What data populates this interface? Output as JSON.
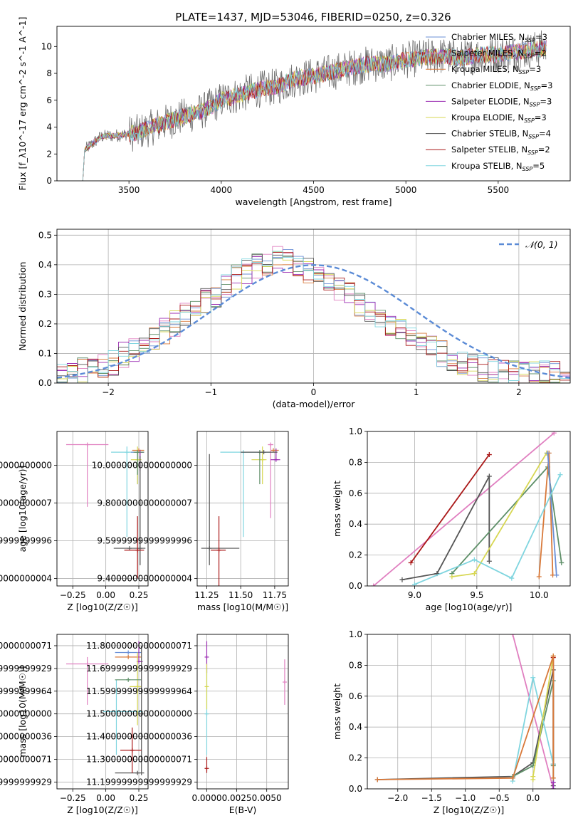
{
  "figure": {
    "title": "PLATE=1437, MJD=53046, FIBERID=0250, z=0.326",
    "colors": [
      "#6a8fd6",
      "#e07fc0",
      "#d8793a",
      "#5e8f68",
      "#9c2fb3",
      "#d7d752",
      "#555555",
      "#aa1818",
      "#7fd5df"
    ]
  },
  "chart_data": [
    {
      "id": "spectrum",
      "type": "line",
      "xlabel": "wavelength [Angstrom, rest frame]",
      "ylabel": "Flux [f_λ10^-17 erg cm^-2 s^-1 A^-1]",
      "xlim": [
        3110,
        5890
      ],
      "ylim": [
        0,
        11.5
      ],
      "xticks": [
        3500,
        4000,
        4500,
        5000,
        5500
      ],
      "yticks": [
        0,
        2,
        4,
        6,
        8,
        10
      ],
      "grid": false,
      "legend": "top-right",
      "series": [
        {
          "name": "Chabrier MILES, N_SSP=3",
          "color": "#6a8fd6"
        },
        {
          "name": "Salpeter MILES, N_SSP=2",
          "color": "#e07fc0"
        },
        {
          "name": "Kroupa MILES, N_SSP=3",
          "color": "#d8793a"
        },
        {
          "name": "Chabrier ELODIE, N_SSP=3",
          "color": "#5e8f68"
        },
        {
          "name": "Salpeter ELODIE, N_SSP=3",
          "color": "#9c2fb3"
        },
        {
          "name": "Kroupa ELODIE, N_SSP=3",
          "color": "#d7d752"
        },
        {
          "name": "Chabrier STELIB, N_SSP=4",
          "color": "#555555"
        },
        {
          "name": "Salpeter STELIB, N_SSP=2",
          "color": "#aa1818"
        },
        {
          "name": "Kroupa STELIB, N_SSP=5",
          "color": "#7fd5df"
        }
      ],
      "continuum": [
        [
          3250,
          0
        ],
        [
          3260,
          2.3
        ],
        [
          3350,
          3.3
        ],
        [
          3450,
          3.4
        ],
        [
          3550,
          3.6
        ],
        [
          3650,
          4.1
        ],
        [
          3750,
          4.6
        ],
        [
          3850,
          5.0
        ],
        [
          3900,
          5.2
        ],
        [
          3950,
          5.6
        ],
        [
          4000,
          6.0
        ],
        [
          4100,
          6.4
        ],
        [
          4200,
          6.8
        ],
        [
          4300,
          7.0
        ],
        [
          4400,
          7.6
        ],
        [
          4500,
          7.8
        ],
        [
          4600,
          8.1
        ],
        [
          4700,
          8.4
        ],
        [
          4800,
          8.7
        ],
        [
          4900,
          8.7
        ],
        [
          5000,
          9.0
        ],
        [
          5100,
          9.2
        ],
        [
          5200,
          9.3
        ],
        [
          5300,
          9.1
        ],
        [
          5400,
          9.4
        ],
        [
          5500,
          9.4
        ],
        [
          5600,
          9.6
        ],
        [
          5700,
          9.8
        ],
        [
          5760,
          9.9
        ]
      ]
    },
    {
      "id": "residual-histogram",
      "type": "bar",
      "xlabel": "(data-model)/error",
      "ylabel": "Normed distribution",
      "xlim": [
        -2.5,
        2.5
      ],
      "ylim": [
        0,
        0.52
      ],
      "xticks": [
        -2,
        -1,
        0,
        1,
        2
      ],
      "yticks": [
        0.0,
        0.1,
        0.2,
        0.3,
        0.4,
        0.5
      ],
      "grid": true,
      "legend": "top-right",
      "reference": {
        "name": "𝒩(0, 1)",
        "mean": 0,
        "sigma": 1,
        "color": "#5b8bd6"
      },
      "bin_width": 0.1,
      "profile": [
        0.025,
        0.03,
        0.04,
        0.045,
        0.06,
        0.07,
        0.095,
        0.11,
        0.13,
        0.155,
        0.175,
        0.2,
        0.225,
        0.25,
        0.275,
        0.3,
        0.33,
        0.36,
        0.38,
        0.395,
        0.41,
        0.42,
        0.41,
        0.39,
        0.38,
        0.36,
        0.34,
        0.32,
        0.3,
        0.27,
        0.25,
        0.22,
        0.2,
        0.18,
        0.16,
        0.14,
        0.12,
        0.1,
        0.085,
        0.07,
        0.06,
        0.05,
        0.045,
        0.035,
        0.03,
        0.03,
        0.03,
        0.035,
        0.035,
        0.04
      ]
    },
    {
      "id": "age-vs-metallicity",
      "type": "scatter",
      "xlabel": "Z [log10(Z/Z☉)]",
      "ylabel": "age [log10(age/yr)]",
      "xlim": [
        -0.37,
        0.32
      ],
      "ylim": [
        9.36,
        10.18
      ],
      "xticks": [
        -0.25,
        0.0,
        0.25
      ],
      "yticks": [
        9.4,
        9.6,
        9.8,
        10.0
      ],
      "grid": true,
      "points": [
        {
          "x": -0.14,
          "y": 10.11,
          "xerr": [
            0.16,
            0.16
          ],
          "yerr": [
            0.33,
            0.0
          ],
          "color": "#e07fc0"
        },
        {
          "x": 0.16,
          "y": 10.07,
          "xerr": [
            0.12,
            0.12
          ],
          "yerr": [
            0.45,
            0.03
          ],
          "color": "#7fd5df"
        },
        {
          "x": 0.24,
          "y": 10.07,
          "xerr": [
            0.05,
            0.05
          ],
          "yerr": [
            0.17,
            0.0
          ],
          "color": "#6a8fd6"
        },
        {
          "x": 0.25,
          "y": 10.08,
          "xerr": [
            0.05,
            0.04
          ],
          "yerr": [
            0.0,
            0.0
          ],
          "color": "#d8793a"
        },
        {
          "x": 0.26,
          "y": 10.07,
          "xerr": [
            0.0,
            0.03
          ],
          "yerr": [
            0.1,
            0.0
          ],
          "color": "#9c2fb3"
        },
        {
          "x": 0.24,
          "y": 10.03,
          "xerr": [
            0.05,
            0.03
          ],
          "yerr": [
            0.13,
            0.07
          ],
          "color": "#d7d752"
        },
        {
          "x": 0.24,
          "y": 10.07,
          "xerr": [
            0.03,
            0.05
          ],
          "yerr": [
            0.12,
            0.0
          ],
          "color": "#5e8f68"
        },
        {
          "x": 0.18,
          "y": 9.56,
          "xerr": [
            0.12,
            0.12
          ],
          "yerr": [
            0.0,
            0.0
          ],
          "color": "#555555"
        },
        {
          "x": 0.26,
          "y": 9.56,
          "xerr": [
            0.0,
            0.0
          ],
          "yerr": [
            0.09,
            0.49
          ],
          "color": "#555555"
        },
        {
          "x": 0.24,
          "y": 9.55,
          "xerr": [
            0.1,
            0.05
          ],
          "yerr": [
            0.15,
            0.18
          ],
          "color": "#aa1818"
        }
      ]
    },
    {
      "id": "age-vs-mass",
      "type": "scatter",
      "xlabel": "mass [log10(M/M☉)]",
      "ylabel": "",
      "xlim": [
        11.18,
        11.85
      ],
      "ylim": [
        9.36,
        10.18
      ],
      "xticks": [
        11.25,
        11.5,
        11.75
      ],
      "yticks": [
        9.4,
        9.6,
        9.8,
        10.0
      ],
      "grid": true,
      "points": [
        {
          "x": 11.52,
          "y": 10.07,
          "xerr": [
            0.17,
            0.2
          ],
          "yerr": [
            0.45,
            0.0
          ],
          "color": "#7fd5df"
        },
        {
          "x": 11.72,
          "y": 10.11,
          "xerr": [
            0.02,
            0.02
          ],
          "yerr": [
            0.39,
            0.0
          ],
          "color": "#e07fc0"
        },
        {
          "x": 11.66,
          "y": 10.03,
          "xerr": [
            0.08,
            0.03
          ],
          "yerr": [
            0.13,
            0.07
          ],
          "color": "#d7d752"
        },
        {
          "x": 11.74,
          "y": 10.08,
          "xerr": [
            0.0,
            0.04
          ],
          "yerr": [
            0.0,
            0.0
          ],
          "color": "#d8793a"
        },
        {
          "x": 11.76,
          "y": 10.03,
          "xerr": [
            0.04,
            0.03
          ],
          "yerr": [
            0.0,
            0.06
          ],
          "color": "#9c2fb3"
        },
        {
          "x": 11.64,
          "y": 10.07,
          "xerr": [
            0.0,
            0.01
          ],
          "yerr": [
            0.17,
            0.0
          ],
          "color": "#5e8f68"
        },
        {
          "x": 11.67,
          "y": 10.07,
          "xerr": [
            0.17,
            0.1
          ],
          "yerr": [
            0.0,
            0.0
          ],
          "color": "#555555"
        },
        {
          "x": 11.27,
          "y": 9.56,
          "xerr": [
            0.06,
            0.22
          ],
          "yerr": [
            0.09,
            0.5
          ],
          "color": "#555555"
        },
        {
          "x": 11.34,
          "y": 9.55,
          "xerr": [
            0.06,
            0.05
          ],
          "yerr": [
            0.2,
            0.18
          ],
          "color": "#aa1818"
        }
      ]
    },
    {
      "id": "mass-weight-vs-age",
      "type": "line",
      "xlabel": "age [log10(age/yr)]",
      "ylabel": "mass weight",
      "xlim": [
        8.62,
        10.25
      ],
      "ylim": [
        0.0,
        1.0
      ],
      "xticks": [
        9.0,
        9.5,
        10.0
      ],
      "yticks": [
        0.0,
        0.2,
        0.4,
        0.6,
        0.8,
        1.0
      ],
      "grid": true,
      "series": [
        {
          "color": "#e07fc0",
          "x": [
            8.67,
            10.12
          ],
          "y": [
            0.0,
            0.99
          ]
        },
        {
          "color": "#aa1818",
          "x": [
            8.97,
            9.6
          ],
          "y": [
            0.15,
            0.85
          ]
        },
        {
          "color": "#555555",
          "x": [
            8.9,
            9.18,
            9.6,
            9.6
          ],
          "y": [
            0.04,
            0.08,
            0.71,
            0.16
          ]
        },
        {
          "color": "#5e8f68",
          "x": [
            9.3,
            10.07,
            10.18
          ],
          "y": [
            0.08,
            0.77,
            0.15
          ]
        },
        {
          "color": "#d7d752",
          "x": [
            9.3,
            9.48,
            10.06
          ],
          "y": [
            0.06,
            0.08,
            0.86
          ]
        },
        {
          "color": "#d8793a",
          "x": [
            10.0,
            10.08,
            10.11
          ],
          "y": [
            0.06,
            0.86,
            0.07
          ]
        },
        {
          "color": "#6a8fd6",
          "x": [
            10.07,
            10.14
          ],
          "y": [
            0.86,
            0.07
          ]
        },
        {
          "color": "#7fd5df",
          "x": [
            9.0,
            9.48,
            9.78,
            10.17
          ],
          "y": [
            0.01,
            0.17,
            0.05,
            0.72
          ]
        }
      ]
    },
    {
      "id": "mass-vs-metallicity",
      "type": "scatter",
      "xlabel": "Z [log10(Z/Z☉)]",
      "ylabel": "mass [log10(M/M☉)]",
      "xlim": [
        -0.37,
        0.32
      ],
      "ylim": [
        11.17,
        11.85
      ],
      "xticks": [
        -0.25,
        0.0,
        0.25
      ],
      "yticks": [
        11.2,
        11.3,
        11.4,
        11.5,
        11.6,
        11.7,
        11.8
      ],
      "grid": true,
      "points": [
        {
          "x": -0.14,
          "y": 11.72,
          "xerr": [
            0.16,
            0.16
          ],
          "yerr": [
            0.18,
            0.03
          ],
          "color": "#e07fc0"
        },
        {
          "x": 0.08,
          "y": 11.51,
          "xerr": [
            0.1,
            0.2
          ],
          "yerr": [
            0.19,
            0.14
          ],
          "color": "#7fd5df"
        },
        {
          "x": 0.17,
          "y": 11.77,
          "xerr": [
            0.1,
            0.1
          ],
          "yerr": [
            0.0,
            0.0
          ],
          "color": "#6a8fd6"
        },
        {
          "x": 0.17,
          "y": 11.75,
          "xerr": [
            0.1,
            0.1
          ],
          "yerr": [
            0.0,
            0.0
          ],
          "color": "#d8793a"
        },
        {
          "x": 0.25,
          "y": 11.73,
          "xerr": [
            0.0,
            0.03
          ],
          "yerr": [
            0.0,
            0.09
          ],
          "color": "#9c2fb3"
        },
        {
          "x": 0.24,
          "y": 11.62,
          "xerr": [
            0.06,
            0.03
          ],
          "yerr": [
            0.17,
            0.15
          ],
          "color": "#d7d752"
        },
        {
          "x": 0.17,
          "y": 11.65,
          "xerr": [
            0.1,
            0.1
          ],
          "yerr": [
            0.0,
            0.0
          ],
          "color": "#5e8f68"
        },
        {
          "x": 0.24,
          "y": 11.24,
          "xerr": [
            0.17,
            0.05
          ],
          "yerr": [
            0.0,
            0.0
          ],
          "color": "#555555"
        },
        {
          "x": 0.27,
          "y": 11.5,
          "xerr": [
            0.0,
            0.0
          ],
          "yerr": [
            0.27,
            0.3
          ],
          "color": "#555555"
        },
        {
          "x": 0.2,
          "y": 11.34,
          "xerr": [
            0.09,
            0.07
          ],
          "yerr": [
            0.1,
            0.1
          ],
          "color": "#aa1818"
        }
      ]
    },
    {
      "id": "mass-vs-extinction",
      "type": "scatter",
      "xlabel": "E(B-V)",
      "ylabel": "",
      "xlim": [
        -0.0008,
        0.0068
      ],
      "ylim": [
        11.17,
        11.85
      ],
      "xticks": [
        0.0,
        0.0025,
        0.005
      ],
      "xtick_labels": [
        "0.0000",
        "0.0025",
        "0.0050"
      ],
      "yticks": [
        11.2,
        11.3,
        11.4,
        11.5,
        11.6,
        11.7,
        11.8
      ],
      "grid": true,
      "points": [
        {
          "x": 0.0,
          "y": 11.75,
          "xerr": [
            0,
            0
          ],
          "yerr": [
            0.07,
            0.07
          ],
          "color": "#9c2fb3"
        },
        {
          "x": 0.0,
          "y": 11.5,
          "xerr": [
            0,
            0
          ],
          "yerr": [
            0.18,
            0.2
          ],
          "color": "#7fd5df"
        },
        {
          "x": 0.0,
          "y": 11.62,
          "xerr": [
            0,
            0
          ],
          "yerr": [
            0.1,
            0.1
          ],
          "color": "#d7d752"
        },
        {
          "x": 0.0,
          "y": 11.26,
          "xerr": [
            0,
            0
          ],
          "yerr": [
            0.02,
            0.05
          ],
          "color": "#aa1818"
        },
        {
          "x": 0.0065,
          "y": 11.64,
          "xerr": [
            0,
            0
          ],
          "yerr": [
            0.1,
            0.1
          ],
          "color": "#e07fc0"
        }
      ]
    },
    {
      "id": "mass-weight-vs-metallicity",
      "type": "line",
      "xlabel": "Z [log10(Z/Z☉)]",
      "ylabel": "mass weight",
      "xlim": [
        -2.45,
        0.55
      ],
      "ylim": [
        0.0,
        1.0
      ],
      "xticks": [
        -2.0,
        -1.5,
        -1.0,
        -0.5,
        0.0
      ],
      "xtick_labels": [
        "−2.0",
        "−1.5",
        "−1.0",
        "−0.5",
        "0.0"
      ],
      "yticks": [
        0.0,
        0.2,
        0.4,
        0.6,
        0.8,
        1.0
      ],
      "grid": true,
      "series": [
        {
          "color": "#e07fc0",
          "x": [
            -0.3,
            0.3
          ],
          "y": [
            1.0,
            0.0
          ]
        },
        {
          "color": "#555555",
          "x": [
            -2.3,
            -0.3,
            0.0,
            0.3,
            0.3
          ],
          "y": [
            0.06,
            0.08,
            0.17,
            0.77,
            0.02
          ]
        },
        {
          "color": "#aa1818",
          "x": [
            0.3,
            0.3
          ],
          "y": [
            0.16,
            0.85
          ]
        },
        {
          "color": "#5e8f68",
          "x": [
            -0.3,
            0.0,
            0.3,
            0.3
          ],
          "y": [
            0.08,
            0.15,
            0.7,
            0.15
          ]
        },
        {
          "color": "#7fd5df",
          "x": [
            -0.3,
            0.0,
            0.3,
            0.3
          ],
          "y": [
            0.05,
            0.72,
            0.16,
            0.0
          ]
        },
        {
          "color": "#d7d752",
          "x": [
            0.0,
            0.0,
            0.3
          ],
          "y": [
            0.06,
            0.08,
            0.86
          ]
        },
        {
          "color": "#9c2fb3",
          "x": [
            0.3,
            0.3
          ],
          "y": [
            0.0,
            0.04
          ]
        },
        {
          "color": "#d8793a",
          "x": [
            -2.3,
            -0.3,
            0.3,
            0.3
          ],
          "y": [
            0.06,
            0.07,
            0.86,
            0.07
          ]
        }
      ]
    }
  ]
}
